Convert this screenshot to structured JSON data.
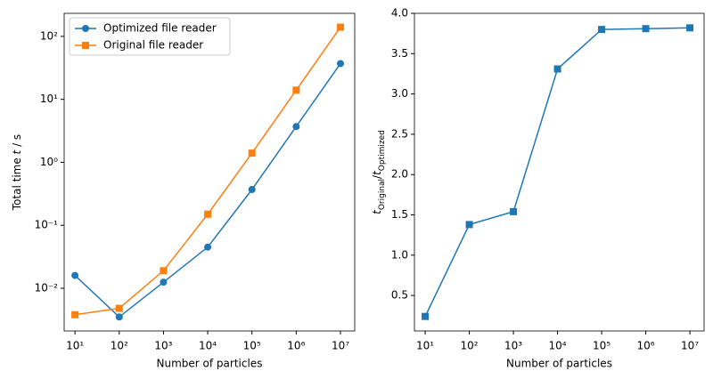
{
  "chart_data": [
    {
      "type": "line",
      "xscale": "log",
      "yscale": "log",
      "legend": "upper left",
      "xlabel": "Number of particles",
      "ylabel": [
        "Total time ",
        "t",
        " / s"
      ],
      "x": [
        10,
        100,
        1000,
        10000,
        100000,
        1000000,
        10000000
      ],
      "xlim": [
        5.7,
        21000000
      ],
      "xticks": [
        {
          "value": 10,
          "label": "10¹"
        },
        {
          "value": 100,
          "label": "10²"
        },
        {
          "value": 1000,
          "label": "10³"
        },
        {
          "value": 10000,
          "label": "10⁴"
        },
        {
          "value": 100000,
          "label": "10⁵"
        },
        {
          "value": 1000000,
          "label": "10⁶"
        },
        {
          "value": 10000000,
          "label": "10⁷"
        }
      ],
      "ylim": [
        0.0021,
        232
      ],
      "yticks": [
        {
          "value": 0.01,
          "label": "10⁻²"
        },
        {
          "value": 0.1,
          "label": "10⁻¹"
        },
        {
          "value": 1,
          "label": "10⁰"
        },
        {
          "value": 10,
          "label": "10¹"
        },
        {
          "value": 100,
          "label": "10²"
        }
      ],
      "series": [
        {
          "name": "Optimized file reader",
          "color": "#1f77b4",
          "marker": "circle",
          "values": [
            0.016,
            0.0035,
            0.0125,
            0.045,
            0.37,
            3.7,
            37
          ]
        },
        {
          "name": "Original file reader",
          "color": "#ff7f0e",
          "marker": "square",
          "values": [
            0.0038,
            0.0048,
            0.019,
            0.15,
            1.4,
            14,
            140
          ]
        }
      ]
    },
    {
      "type": "line",
      "xscale": "log",
      "yscale": "linear",
      "xlabel": "Number of particles",
      "ylabel": [
        "t",
        "Original",
        "/",
        "t",
        "Optimized"
      ],
      "x": [
        10,
        100,
        1000,
        10000,
        100000,
        1000000,
        10000000
      ],
      "xlim": [
        5.7,
        21000000
      ],
      "xticks": [
        {
          "value": 10,
          "label": "10¹"
        },
        {
          "value": 100,
          "label": "10²"
        },
        {
          "value": 1000,
          "label": "10³"
        },
        {
          "value": 10000,
          "label": "10⁴"
        },
        {
          "value": 100000,
          "label": "10⁵"
        },
        {
          "value": 1000000,
          "label": "10⁶"
        },
        {
          "value": 10000000,
          "label": "10⁷"
        }
      ],
      "ylim": [
        0.06,
        4.0
      ],
      "yticks": [
        {
          "value": 0.5,
          "label": "0.5"
        },
        {
          "value": 1,
          "label": "1.0"
        },
        {
          "value": 1.5,
          "label": "1.5"
        },
        {
          "value": 2,
          "label": "2.0"
        },
        {
          "value": 2.5,
          "label": "2.5"
        },
        {
          "value": 3,
          "label": "3.0"
        },
        {
          "value": 3.5,
          "label": "3.5"
        },
        {
          "value": 4,
          "label": "4.0"
        }
      ],
      "series": [
        {
          "color": "#1f77b4",
          "marker": "square",
          "values": [
            0.24,
            1.38,
            1.54,
            3.31,
            3.8,
            3.81,
            3.82
          ]
        }
      ]
    }
  ]
}
